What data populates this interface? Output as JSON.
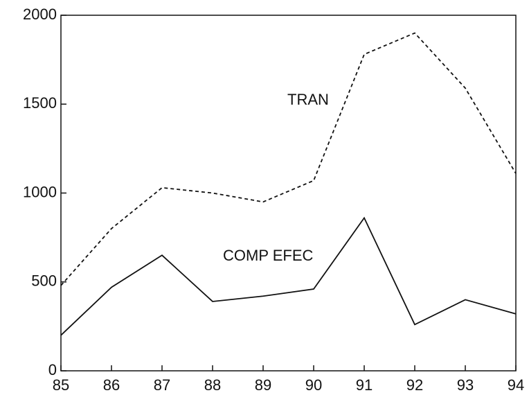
{
  "chart_data": {
    "type": "line",
    "x": [
      85,
      86,
      87,
      88,
      89,
      90,
      91,
      92,
      93,
      94
    ],
    "series": [
      {
        "name": "TRAN",
        "color": "#111111",
        "dash": true,
        "values": [
          480,
          800,
          1030,
          1000,
          950,
          1070,
          1780,
          1900,
          1590,
          1110
        ]
      },
      {
        "name": "COMP EFEC",
        "color": "#111111",
        "dash": false,
        "values": [
          200,
          470,
          650,
          390,
          420,
          460,
          860,
          260,
          400,
          320
        ]
      }
    ],
    "xlim": [
      85,
      94
    ],
    "xticks": [
      85,
      86,
      87,
      88,
      89,
      90,
      91,
      92,
      93,
      94
    ],
    "ylim": [
      0,
      2000
    ],
    "yticks": [
      0,
      500,
      1000,
      1500,
      2000
    ],
    "grid": false
  }
}
